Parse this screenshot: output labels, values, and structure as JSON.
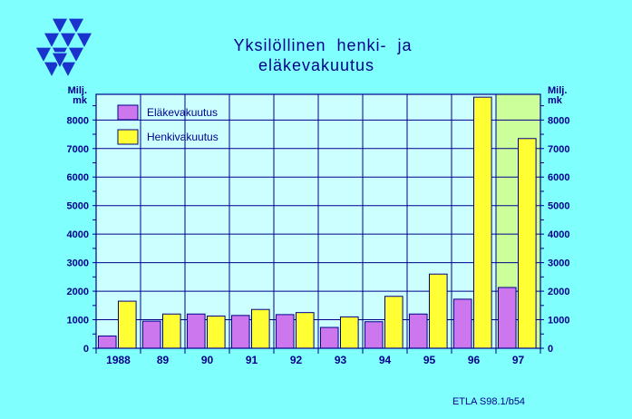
{
  "title_line1": "Yksilöllinen  henki-  ja",
  "title_line2": "eläkevakuutus",
  "unit_left_line1": "Milj.",
  "unit_left_line2": "mk",
  "unit_right_line1": "Milj.",
  "unit_right_line2": "mk",
  "source_note": "ETLA S98.1/b54",
  "colors": {
    "background": "#80ffff",
    "plot_area": "#ccffff",
    "forecast_shade": "#ccff99",
    "grid": "#00008b",
    "text": "#00008b",
    "elake_bar": "#cc77ee",
    "henki_bar": "#ffff33",
    "logo": "#1a33cc"
  },
  "chart_data": {
    "type": "bar",
    "categories": [
      "1988",
      "89",
      "90",
      "91",
      "92",
      "93",
      "94",
      "95",
      "96",
      "97"
    ],
    "series": [
      {
        "name": "Eläkevakuutus",
        "color": "#cc77ee",
        "values": [
          430,
          950,
          1200,
          1150,
          1180,
          730,
          930,
          1200,
          1720,
          2130
        ]
      },
      {
        "name": "Henkivakuutus",
        "color": "#ffff33",
        "values": [
          1650,
          1200,
          1130,
          1360,
          1250,
          1100,
          1820,
          2600,
          8800,
          7350
        ]
      }
    ],
    "ylim": [
      0,
      8900
    ],
    "yticks": [
      0,
      1000,
      2000,
      3000,
      4000,
      5000,
      6000,
      7000,
      8000
    ],
    "ytick_labels": [
      "0",
      "1000",
      "2000",
      "3000",
      "4000",
      "5000",
      "6000",
      "7000",
      "8000"
    ],
    "shaded_category": "97",
    "grid": true,
    "legend_position": "top-left"
  }
}
